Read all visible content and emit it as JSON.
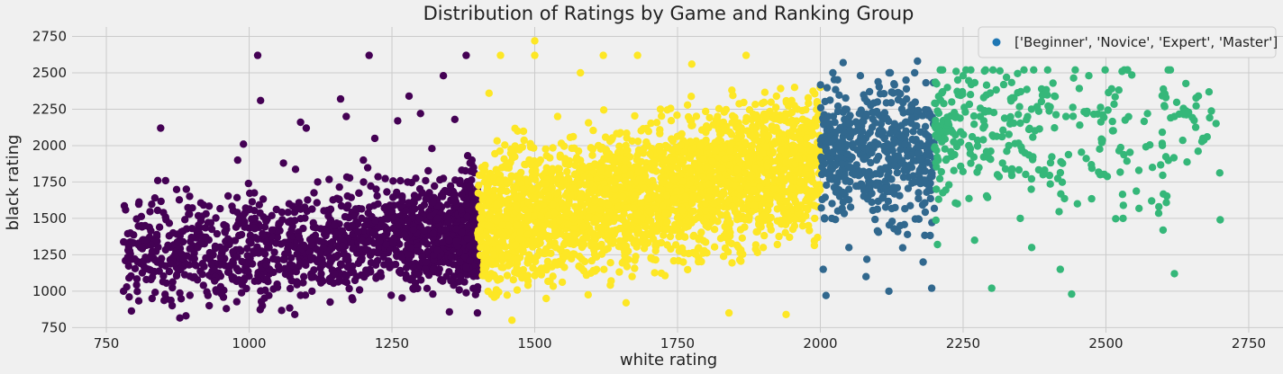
{
  "chart_data": {
    "type": "scatter",
    "title": "Distribution of Ratings by Game and Ranking Group",
    "xlabel": "white rating",
    "ylabel": "black rating",
    "xlim": [
      690,
      2810
    ],
    "ylim": [
      715,
      2815
    ],
    "xticks": [
      750,
      1000,
      1250,
      1500,
      1750,
      2000,
      2250,
      2500,
      2750
    ],
    "yticks": [
      750,
      1000,
      1250,
      1500,
      1750,
      2000,
      2250,
      2500,
      2750
    ],
    "grid": true,
    "legend": {
      "position": "top-right",
      "entries": [
        "['Beginner', 'Novice', 'Expert', 'Master']"
      ]
    },
    "groups": [
      {
        "name": "Beginner",
        "color": "#440154",
        "x_range": [
          780,
          1400
        ],
        "points": [
          [
            780,
            1000
          ],
          [
            790,
            960
          ],
          [
            800,
            1220
          ],
          [
            810,
            1300
          ],
          [
            820,
            1080
          ],
          [
            830,
            950
          ],
          [
            835,
            1640
          ],
          [
            840,
            1760
          ],
          [
            845,
            2120
          ],
          [
            850,
            1540
          ],
          [
            860,
            1380
          ],
          [
            870,
            1250
          ],
          [
            880,
            1150
          ],
          [
            890,
            1700
          ],
          [
            900,
            1430
          ],
          [
            910,
            1300
          ],
          [
            920,
            1040
          ],
          [
            930,
            900
          ],
          [
            950,
            1230
          ],
          [
            960,
            880
          ],
          [
            970,
            1100
          ],
          [
            980,
            1900
          ],
          [
            990,
            2010
          ],
          [
            1000,
            1560
          ],
          [
            1010,
            1500
          ],
          [
            1015,
            2620
          ],
          [
            1020,
            2310
          ],
          [
            1030,
            1180
          ],
          [
            1040,
            1420
          ],
          [
            1060,
            1880
          ],
          [
            1070,
            1600
          ],
          [
            1080,
            840
          ],
          [
            1090,
            2160
          ],
          [
            1100,
            2120
          ],
          [
            1110,
            1000
          ],
          [
            1120,
            1750
          ],
          [
            1130,
            1300
          ],
          [
            1150,
            1120
          ],
          [
            1160,
            2320
          ],
          [
            1170,
            2200
          ],
          [
            1180,
            1450
          ],
          [
            1200,
            1900
          ],
          [
            1210,
            2620
          ],
          [
            1220,
            2050
          ],
          [
            1240,
            1320
          ],
          [
            1250,
            1550
          ],
          [
            1260,
            2170
          ],
          [
            1280,
            2340
          ],
          [
            1290,
            1650
          ],
          [
            1300,
            2220
          ],
          [
            1310,
            1200
          ],
          [
            1320,
            1980
          ],
          [
            1330,
            1500
          ],
          [
            1340,
            2480
          ],
          [
            1350,
            1350
          ],
          [
            1360,
            2180
          ],
          [
            1370,
            1100
          ],
          [
            1380,
            2620
          ],
          [
            1390,
            1900
          ],
          [
            1395,
            1400
          ]
        ]
      },
      {
        "name": "Novice",
        "color": "#fde725",
        "x_range": [
          1400,
          2000
        ],
        "points": [
          [
            1405,
            1300
          ],
          [
            1410,
            1820
          ],
          [
            1420,
            2360
          ],
          [
            1430,
            1100
          ],
          [
            1440,
            2620
          ],
          [
            1450,
            1500
          ],
          [
            1460,
            800
          ],
          [
            1470,
            2100
          ],
          [
            1480,
            1700
          ],
          [
            1490,
            1250
          ],
          [
            1500,
            2720
          ],
          [
            1500,
            2620
          ],
          [
            1510,
            1900
          ],
          [
            1520,
            950
          ],
          [
            1540,
            2200
          ],
          [
            1560,
            1600
          ],
          [
            1580,
            2500
          ],
          [
            1600,
            1400
          ],
          [
            1620,
            2620
          ],
          [
            1640,
            1750
          ],
          [
            1660,
            920
          ],
          [
            1680,
            2620
          ],
          [
            1700,
            1550
          ],
          [
            1720,
            2250
          ],
          [
            1740,
            1850
          ],
          [
            1760,
            1200
          ],
          [
            1775,
            2560
          ],
          [
            1790,
            2000
          ],
          [
            1800,
            1450
          ],
          [
            1820,
            2200
          ],
          [
            1840,
            850
          ],
          [
            1860,
            1700
          ],
          [
            1870,
            2620
          ],
          [
            1880,
            1950
          ],
          [
            1900,
            1300
          ],
          [
            1920,
            2100
          ],
          [
            1940,
            840
          ],
          [
            1950,
            1650
          ],
          [
            1960,
            2250
          ],
          [
            1980,
            1800
          ],
          [
            1990,
            1500
          ]
        ]
      },
      {
        "name": "Expert",
        "color": "#31688e",
        "x_range": [
          2000,
          2200
        ],
        "points": [
          [
            2005,
            1150
          ],
          [
            2010,
            970
          ],
          [
            2020,
            1500
          ],
          [
            2030,
            2000
          ],
          [
            2040,
            2570
          ],
          [
            2050,
            1300
          ],
          [
            2060,
            1800
          ],
          [
            2070,
            2480
          ],
          [
            2080,
            1100
          ],
          [
            2090,
            1950
          ],
          [
            2100,
            2300
          ],
          [
            2110,
            1650
          ],
          [
            2120,
            1000
          ],
          [
            2130,
            2150
          ],
          [
            2140,
            1450
          ],
          [
            2150,
            2450
          ],
          [
            2160,
            1850
          ],
          [
            2170,
            2580
          ],
          [
            2180,
            1200
          ],
          [
            2190,
            2050
          ],
          [
            2195,
            1020
          ]
        ]
      },
      {
        "name": "Master",
        "color": "#35b779",
        "x_range": [
          2200,
          2700
        ],
        "points": [
          [
            2205,
            1320
          ],
          [
            2210,
            2520
          ],
          [
            2220,
            1900
          ],
          [
            2230,
            2300
          ],
          [
            2240,
            1600
          ],
          [
            2250,
            2480
          ],
          [
            2260,
            2000
          ],
          [
            2270,
            1350
          ],
          [
            2280,
            2200
          ],
          [
            2300,
            1020
          ],
          [
            2310,
            1800
          ],
          [
            2330,
            2000
          ],
          [
            2350,
            1500
          ],
          [
            2370,
            1300
          ],
          [
            2390,
            1800
          ],
          [
            2410,
            2340
          ],
          [
            2420,
            1150
          ],
          [
            2430,
            2200
          ],
          [
            2440,
            980
          ],
          [
            2450,
            1600
          ],
          [
            2470,
            2480
          ],
          [
            2490,
            1800
          ],
          [
            2510,
            2390
          ],
          [
            2530,
            1500
          ],
          [
            2580,
            1620
          ],
          [
            2600,
            1420
          ],
          [
            2620,
            2200
          ],
          [
            2620,
            1120
          ],
          [
            2700,
            1490
          ]
        ]
      }
    ]
  }
}
